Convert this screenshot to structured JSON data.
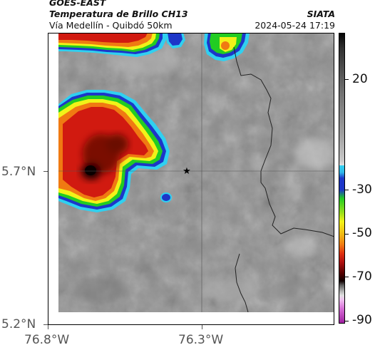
{
  "header": {
    "satellite": "GOES-EAST",
    "product": "Temperatura de Brillo CH13",
    "route": "Vía Medellín - Quibdó 50km",
    "org": "SIATA",
    "datetime": "2024-05-24 17:19"
  },
  "axes": {
    "x_ticks": [
      "76.8°W",
      "76.3°W"
    ],
    "y_ticks": [
      "5.7°N",
      "5.2°N"
    ]
  },
  "colorbar": {
    "labels": [
      "20",
      "-30",
      "-50",
      "-70",
      "-90"
    ]
  },
  "colors": {
    "gray_field": "#8a8a8a",
    "cold_black": "#1a0000",
    "red": "#d11a10",
    "orange": "#f07a12",
    "yellow": "#f2f218",
    "green": "#22cc22",
    "blue": "#1d36c8",
    "cyan": "#30d0f0"
  },
  "icons": {
    "location_marker": "star-icon"
  }
}
